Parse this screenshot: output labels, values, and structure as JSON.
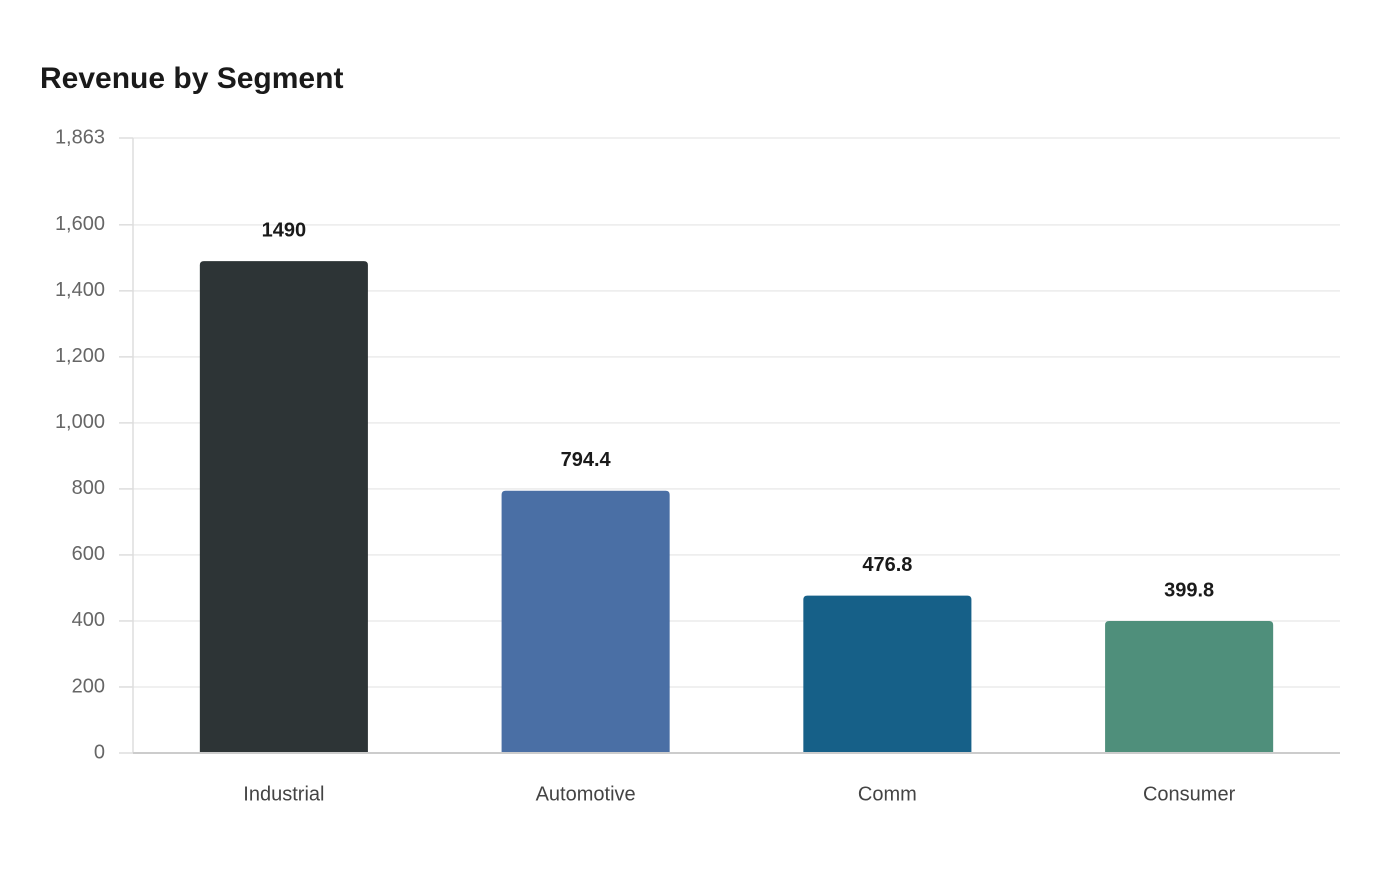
{
  "chart_data": {
    "type": "bar",
    "title": "Revenue by Segment",
    "categories": [
      "Industrial",
      "Automotive",
      "Comm",
      "Consumer"
    ],
    "values": [
      1490,
      794.4,
      476.8,
      399.8
    ],
    "colors": [
      "#2d3436",
      "#4a6fa5",
      "#166088",
      "#4f8f7b"
    ],
    "ylim": [
      0,
      1863
    ],
    "yticks": [
      0,
      200,
      400,
      600,
      800,
      {
        "value": 1000,
        "label": "1,000"
      },
      {
        "value": 1200,
        "label": "1,200"
      },
      {
        "value": 1400,
        "label": "1,400"
      },
      {
        "value": 1600,
        "label": "1,600"
      },
      {
        "value": 1863,
        "label": "1,863"
      }
    ],
    "grid": true
  }
}
